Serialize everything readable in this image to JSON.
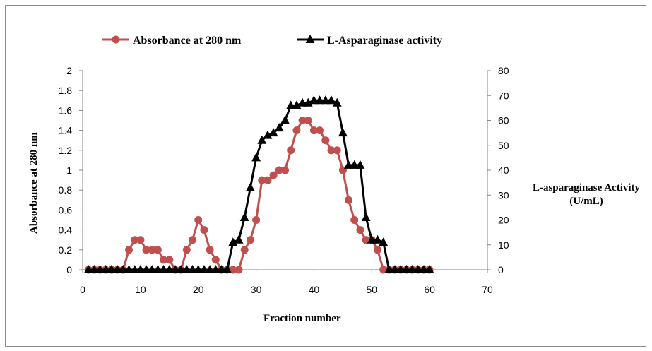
{
  "chart_data": {
    "type": "line",
    "xlabel": "Fraction number",
    "ylabel": "Absorbance at 280 nm",
    "y2label_line1": "L-asparaginase Activity",
    "y2label_line2": "(U/mL)",
    "xlim": [
      0,
      70
    ],
    "ylim": [
      0,
      2
    ],
    "y2lim": [
      0,
      80
    ],
    "x_ticks": [
      "0",
      "10",
      "20",
      "30",
      "40",
      "50",
      "60",
      "70"
    ],
    "y_ticks": [
      "0",
      "0.2",
      "0.4",
      "0.6",
      "0.8",
      "1",
      "1.2",
      "1.4",
      "1.6",
      "1.8",
      "2"
    ],
    "y2_ticks": [
      "0",
      "10",
      "20",
      "30",
      "40",
      "50",
      "60",
      "70",
      "80"
    ],
    "grid": false,
    "legend_position": "top",
    "series": [
      {
        "name": "Absorbance at 280 nm",
        "axis": "left",
        "color": "#c0504d",
        "marker": "circle",
        "x": [
          1,
          2,
          3,
          4,
          5,
          6,
          7,
          8,
          9,
          10,
          11,
          12,
          13,
          14,
          15,
          16,
          17,
          18,
          19,
          20,
          21,
          22,
          23,
          24,
          25,
          26,
          27,
          28,
          29,
          30,
          31,
          32,
          33,
          34,
          35,
          36,
          37,
          38,
          39,
          40,
          41,
          42,
          43,
          44,
          45,
          46,
          47,
          48,
          49,
          50,
          51,
          52,
          53,
          54,
          55,
          56,
          57,
          58,
          59,
          60
        ],
        "values": [
          0,
          0,
          0,
          0,
          0,
          0,
          0,
          0.2,
          0.3,
          0.3,
          0.2,
          0.2,
          0.2,
          0.1,
          0.1,
          0,
          0,
          0.2,
          0.3,
          0.5,
          0.4,
          0.2,
          0.1,
          0,
          0,
          0,
          0,
          0.2,
          0.3,
          0.5,
          0.9,
          0.9,
          0.95,
          1,
          1,
          1.2,
          1.4,
          1.5,
          1.5,
          1.4,
          1.4,
          1.3,
          1.2,
          1.2,
          1,
          0.7,
          0.5,
          0.4,
          0.3,
          0.3,
          0.2,
          0,
          0,
          0,
          0,
          0,
          0,
          0,
          0,
          0
        ]
      },
      {
        "name": "L-Asparaginase activity",
        "axis": "right",
        "color": "#000000",
        "marker": "triangle",
        "x": [
          1,
          2,
          3,
          4,
          5,
          6,
          7,
          8,
          9,
          10,
          11,
          12,
          13,
          14,
          15,
          16,
          17,
          18,
          19,
          20,
          21,
          22,
          23,
          24,
          25,
          26,
          27,
          28,
          29,
          30,
          31,
          32,
          33,
          34,
          35,
          36,
          37,
          38,
          39,
          40,
          41,
          42,
          43,
          44,
          45,
          46,
          47,
          48,
          49,
          50,
          51,
          52,
          53,
          54,
          55,
          56,
          57,
          58,
          59,
          60
        ],
        "values": [
          0,
          0,
          0,
          0,
          0,
          0,
          0,
          0,
          0,
          0,
          0,
          0,
          0,
          0,
          0,
          0,
          0,
          0,
          0,
          0,
          0,
          0,
          0,
          0,
          0,
          11,
          12,
          21,
          33,
          45,
          52,
          54,
          55,
          57,
          60,
          66,
          66,
          67,
          67,
          68,
          68,
          68,
          68,
          67,
          55,
          42,
          42,
          42,
          21,
          12,
          12,
          11,
          0,
          0,
          0,
          0,
          0,
          0,
          0,
          0
        ]
      }
    ]
  }
}
